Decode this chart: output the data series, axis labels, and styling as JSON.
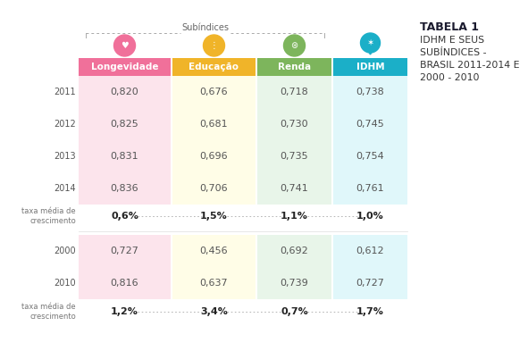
{
  "title1": "TABELA 1",
  "title2_lines": [
    "IDHM E SEUS",
    "SUBÍNDICES -",
    "BRASIL 2011-2014 E",
    "2000 - 2010"
  ],
  "subindices_label": "Subíndices",
  "col_headers": [
    "Longevidade",
    "Educação",
    "Renda",
    "IDHM"
  ],
  "col_colors": [
    "#f0709a",
    "#f0b429",
    "#7db55c",
    "#1bafc8"
  ],
  "col_bg_colors": [
    "#fce4ec",
    "#fffde7",
    "#e8f5e9",
    "#e0f7fa"
  ],
  "rows_section1": [
    {
      "year": "2011",
      "values": [
        "0,820",
        "0,676",
        "0,718",
        "0,738"
      ]
    },
    {
      "year": "2012",
      "values": [
        "0,825",
        "0,681",
        "0,730",
        "0,745"
      ]
    },
    {
      "year": "2013",
      "values": [
        "0,831",
        "0,696",
        "0,735",
        "0,754"
      ]
    },
    {
      "year": "2014",
      "values": [
        "0,836",
        "0,706",
        "0,741",
        "0,761"
      ]
    }
  ],
  "taxa_label": "taxa média de\ncrescimento",
  "taxa_section1": [
    "0,6%",
    "1,5%",
    "1,1%",
    "1,0%"
  ],
  "rows_section2": [
    {
      "year": "2000",
      "values": [
        "0,727",
        "0,456",
        "0,692",
        "0,612"
      ]
    },
    {
      "year": "2010",
      "values": [
        "0,816",
        "0,637",
        "0,739",
        "0,727"
      ]
    }
  ],
  "taxa_section2": [
    "1,2%",
    "3,4%",
    "0,7%",
    "1,7%"
  ],
  "bg_color": "#ffffff"
}
